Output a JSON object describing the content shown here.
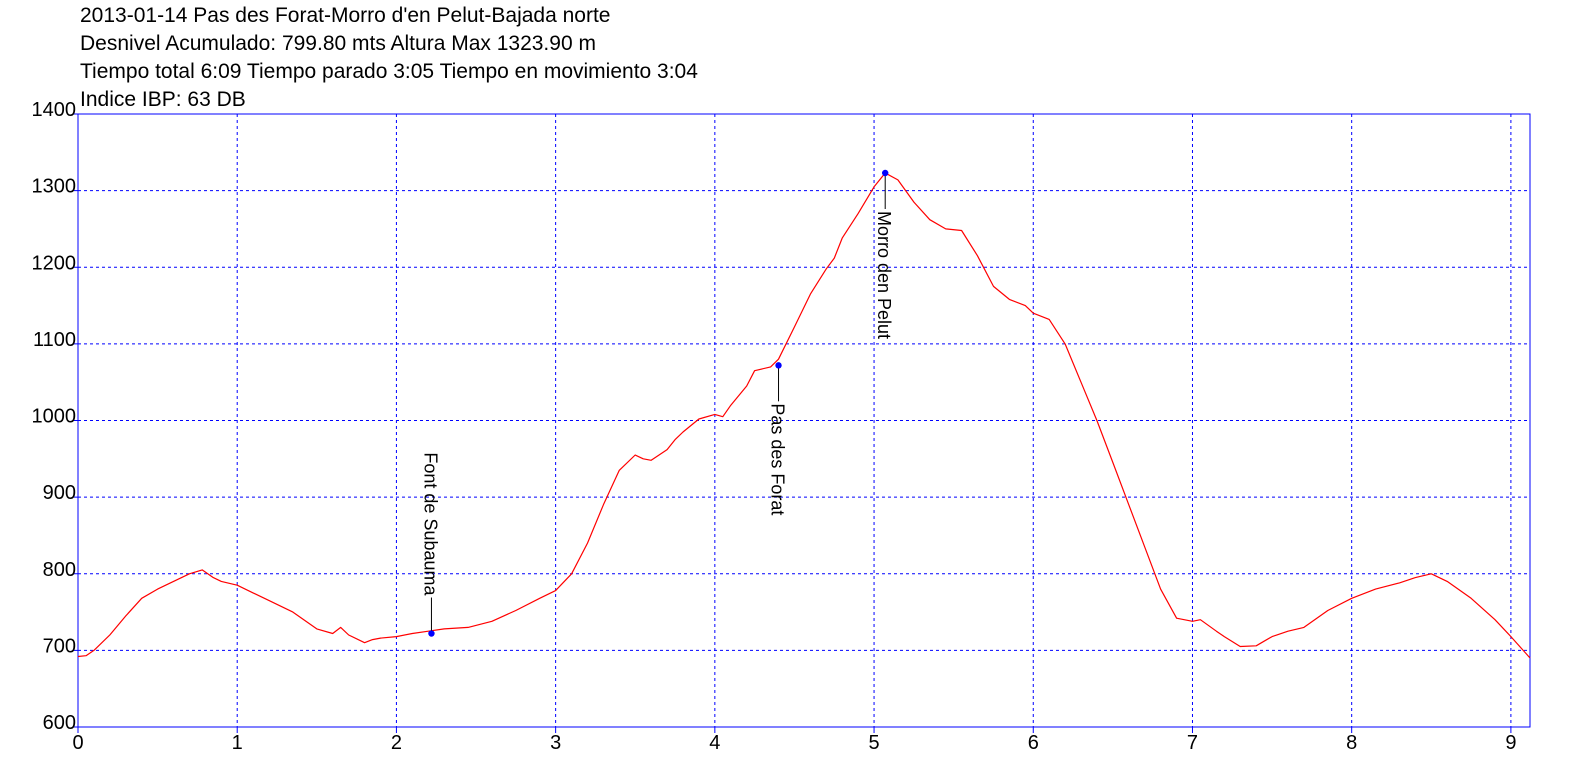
{
  "header": {
    "lines": [
      "2013-01-14 Pas des Forat-Morro d'en Pelut-Bajada norte",
      "Desnivel Acumulado: 799.80 mts  Altura Max 1323.90 m",
      "Tiempo total 6:09 Tiempo parado 3:05 Tiempo en movimiento 3:04",
      "Indice IBP: 63 DB"
    ]
  },
  "chart_data": {
    "type": "line",
    "title": "2013-01-14 Pas des Forat-Morro d'en Pelut-Bajada norte",
    "xlabel": "",
    "ylabel": "",
    "xlim": [
      0,
      9.12
    ],
    "ylim": [
      600,
      1400
    ],
    "x_ticks": [
      0,
      1,
      2,
      3,
      4,
      5,
      6,
      7,
      8,
      9
    ],
    "y_ticks": [
      600,
      700,
      800,
      900,
      1000,
      1100,
      1200,
      1300,
      1400
    ],
    "grid": true,
    "colors": {
      "line": "#ff0000",
      "grid": "#0000ff",
      "frame": "#0000ff",
      "marker": "#0000ff"
    },
    "series": [
      {
        "x": [
          0,
          0.05,
          0.1,
          0.2,
          0.3,
          0.4,
          0.5,
          0.6,
          0.7,
          0.78,
          0.85,
          0.9,
          1.0,
          1.1,
          1.2,
          1.35,
          1.5,
          1.6,
          1.65,
          1.7,
          1.8,
          1.85,
          1.9,
          2.0,
          2.1,
          2.2,
          2.3,
          2.45,
          2.6,
          2.75,
          2.9,
          3.0,
          3.1,
          3.2,
          3.3,
          3.4,
          3.5,
          3.55,
          3.6,
          3.7,
          3.75,
          3.8,
          3.9,
          4.0,
          4.05,
          4.1,
          4.2,
          4.25,
          4.35,
          4.4,
          4.5,
          4.6,
          4.7,
          4.75,
          4.8,
          4.9,
          5.0,
          5.07,
          5.15,
          5.25,
          5.35,
          5.45,
          5.55,
          5.65,
          5.75,
          5.85,
          5.95,
          6.0,
          6.1,
          6.2,
          6.3,
          6.4,
          6.5,
          6.6,
          6.7,
          6.8,
          6.9,
          7.0,
          7.05,
          7.15,
          7.2,
          7.3,
          7.4,
          7.45,
          7.5,
          7.6,
          7.7,
          7.85,
          8.0,
          8.15,
          8.3,
          8.4,
          8.5,
          8.6,
          8.75,
          8.9,
          9.0,
          9.12
        ],
        "y": [
          692,
          693,
          700,
          720,
          745,
          768,
          780,
          790,
          800,
          805,
          795,
          790,
          785,
          775,
          765,
          750,
          728,
          722,
          730,
          720,
          710,
          714,
          716,
          718,
          722,
          725,
          728,
          730,
          738,
          752,
          768,
          778,
          800,
          840,
          890,
          935,
          955,
          950,
          948,
          962,
          975,
          985,
          1002,
          1008,
          1005,
          1020,
          1045,
          1065,
          1070,
          1080,
          1122,
          1165,
          1198,
          1212,
          1238,
          1270,
          1305,
          1323,
          1314,
          1285,
          1262,
          1250,
          1248,
          1215,
          1175,
          1158,
          1150,
          1140,
          1132,
          1100,
          1050,
          1000,
          945,
          890,
          835,
          780,
          742,
          738,
          740,
          725,
          718,
          705,
          706,
          712,
          718,
          725,
          730,
          752,
          768,
          780,
          788,
          795,
          800,
          790,
          768,
          740,
          718,
          690
        ]
      }
    ],
    "annotations": [
      {
        "label": "Font de Subauma",
        "x": 2.22,
        "y": 722
      },
      {
        "label": "Pas des Forat",
        "x": 4.4,
        "y": 1072
      },
      {
        "label": "Morro den Pelut",
        "x": 5.07,
        "y": 1323
      }
    ]
  }
}
